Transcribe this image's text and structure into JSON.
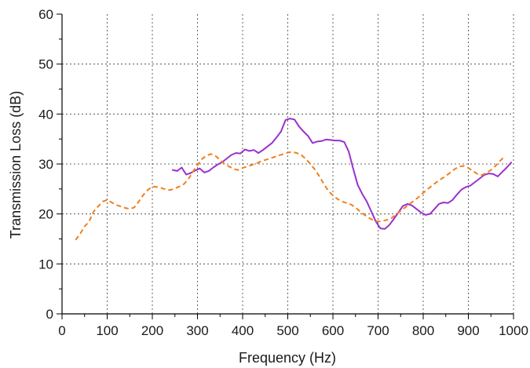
{
  "chart_data": {
    "type": "line",
    "xlabel": "Frequency (Hz)",
    "ylabel": "Transmission Loss (dB)",
    "xlim": [
      0,
      1000
    ],
    "ylim": [
      0,
      60
    ],
    "x_ticks": [
      "0",
      "100",
      "200",
      "300",
      "400",
      "500",
      "600",
      "700",
      "800",
      "900",
      "1000"
    ],
    "y_ticks": [
      "0",
      "10",
      "20",
      "30",
      "40",
      "50",
      "60"
    ],
    "x_minor_step": 50,
    "y_minor_step": 5,
    "grid": true,
    "series": [
      {
        "style": "solid",
        "color": "#9932CC",
        "x": [
          245,
          255,
          265,
          275,
          285,
          295,
          305,
          315,
          325,
          335,
          345,
          355,
          365,
          375,
          385,
          395,
          405,
          415,
          425,
          435,
          445,
          455,
          465,
          475,
          485,
          495,
          505,
          515,
          525,
          535,
          545,
          555,
          565,
          575,
          585,
          595,
          605,
          615,
          625,
          635,
          645,
          655,
          665,
          675,
          685,
          695,
          705,
          715,
          725,
          735,
          745,
          755,
          765,
          775,
          785,
          795,
          805,
          815,
          825,
          835,
          845,
          855,
          865,
          875,
          885,
          895,
          905,
          915,
          925,
          935,
          945,
          955,
          965,
          975,
          985,
          995
        ],
        "y": [
          28.8,
          28.6,
          29.3,
          27.9,
          28.2,
          28.7,
          29.1,
          28.3,
          28.6,
          29.3,
          29.9,
          30.4,
          31.1,
          31.8,
          32.2,
          32.1,
          32.9,
          32.6,
          32.8,
          32.2,
          32.8,
          33.5,
          34.2,
          35.3,
          36.5,
          38.8,
          39.1,
          38.9,
          37.5,
          36.5,
          35.6,
          34.2,
          34.5,
          34.6,
          34.9,
          34.8,
          34.7,
          34.7,
          34.4,
          32.5,
          29.0,
          25.8,
          24.0,
          22.5,
          20.5,
          18.5,
          17.1,
          17.0,
          17.8,
          19.0,
          20.3,
          21.6,
          22.0,
          21.7,
          21.0,
          20.3,
          19.8,
          20.0,
          21.0,
          22.0,
          22.3,
          22.2,
          22.8,
          23.9,
          24.9,
          25.4,
          25.7,
          26.4,
          27.1,
          27.8,
          28.1,
          28.0,
          27.5,
          28.4,
          29.3,
          30.3
        ]
      },
      {
        "style": "dashed",
        "color": "#F07F1E",
        "x": [
          30,
          40,
          50,
          60,
          70,
          80,
          90,
          100,
          110,
          120,
          130,
          140,
          150,
          160,
          170,
          180,
          190,
          200,
          210,
          220,
          230,
          240,
          250,
          260,
          270,
          280,
          290,
          300,
          310,
          320,
          330,
          340,
          350,
          360,
          370,
          380,
          390,
          400,
          410,
          420,
          430,
          440,
          450,
          460,
          470,
          480,
          490,
          500,
          510,
          520,
          530,
          540,
          550,
          560,
          570,
          580,
          590,
          600,
          610,
          620,
          630,
          640,
          650,
          660,
          670,
          680,
          690,
          700,
          710,
          720,
          730,
          740,
          750,
          760,
          770,
          780,
          790,
          800,
          810,
          820,
          830,
          840,
          850,
          860,
          870,
          880,
          890,
          900,
          910,
          920,
          930,
          940,
          950,
          960,
          970,
          980
        ],
        "y": [
          14.8,
          16.0,
          17.5,
          18.5,
          20.5,
          21.5,
          22.5,
          22.8,
          22.3,
          21.8,
          21.5,
          21.2,
          21.0,
          21.3,
          22.5,
          23.8,
          24.8,
          25.5,
          25.4,
          25.2,
          24.9,
          24.8,
          25.1,
          25.5,
          26.0,
          27.0,
          28.5,
          29.8,
          31.0,
          31.7,
          32.0,
          31.6,
          30.8,
          30.0,
          29.5,
          29.0,
          28.8,
          29.2,
          29.5,
          29.8,
          30.1,
          30.5,
          30.8,
          31.1,
          31.4,
          31.7,
          32.0,
          32.3,
          32.4,
          32.2,
          31.8,
          31.0,
          30.0,
          28.9,
          27.5,
          26.0,
          24.6,
          23.7,
          23.0,
          22.5,
          22.2,
          21.9,
          21.3,
          20.5,
          19.8,
          19.2,
          18.7,
          18.5,
          18.6,
          18.8,
          19.2,
          19.9,
          20.6,
          21.3,
          22.0,
          22.7,
          23.4,
          24.2,
          25.0,
          25.7,
          26.4,
          27.0,
          27.6,
          28.3,
          29.0,
          29.5,
          29.6,
          29.2,
          28.6,
          28.0,
          27.8,
          28.2,
          28.8,
          29.6,
          30.6,
          31.5
        ]
      }
    ]
  }
}
